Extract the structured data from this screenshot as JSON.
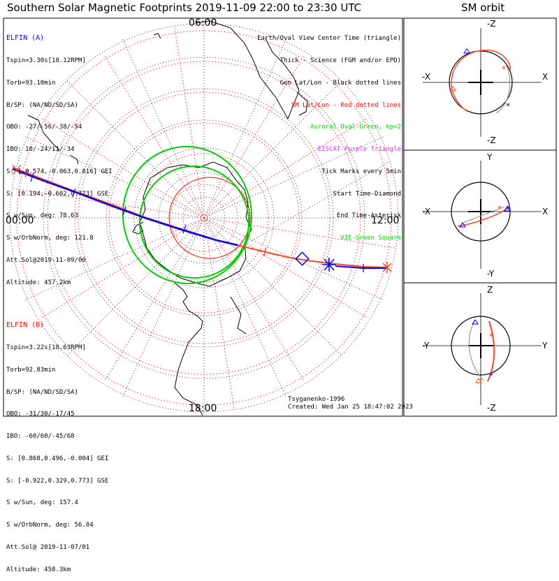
{
  "header": {
    "title": "Southern Solar Magnetic Footprints 2019-11-09 22:00 to 23:30 UTC",
    "orbit_title": "SM orbit"
  },
  "map_labels": {
    "top": "06:00",
    "left": "00:00",
    "right": "12:00",
    "bottom": "18:00"
  },
  "legend": [
    {
      "text": "Earth/Oval View Center Time (triangle)",
      "color": "#000000"
    },
    {
      "text": "Thick - Science (FGM and/or EPD)",
      "color": "#000000"
    },
    {
      "text": "Geo Lat/Lon - Black dotted lines",
      "color": "#000000"
    },
    {
      "text": "SM Lat/Lon - Red dotted lines",
      "color": "#ff0000"
    },
    {
      "text": "Auroral Oval-Green, kp=2",
      "color": "#00cc00"
    },
    {
      "text": "EISCAT-Purple Triangle",
      "color": "#cc33cc"
    },
    {
      "text": "Tick Marks every 5min",
      "color": "#000000"
    },
    {
      "text": "Start Time-Diamond",
      "color": "#000000"
    },
    {
      "text": "End Time-Asterisk",
      "color": "#000000"
    },
    {
      "text": "VIE-Green Square",
      "color": "#00cc00"
    }
  ],
  "elfin_a": {
    "name": "ELFIN (A)",
    "color": "#0000ff",
    "lines": [
      "Tspin=3.30s[18.12RPM]",
      "Torb=93.10min",
      "B/SP: (NA/ND/SD/SA)",
      "OBO: -27/-56/-38/-54",
      "IBO: 10/-24/11/-34",
      "S: [-0.574,-0.063,0.816] GEI",
      "S: [0.194,-0.602,0.773] GSE",
      "S w/Sun, deg: 78.63",
      "S w/OrbNorm, deg: 121.8",
      "Att.Sol@2019-11-09/00",
      "Altitude: 457.2km"
    ]
  },
  "elfin_b": {
    "name": "ELFIN (B)",
    "color": "#ff0000",
    "lines": [
      "Tspin=3.22s[18.63RPM]",
      "Torb=92.83min",
      "B/SP: (NA/ND/SD/SA)",
      "OBO: -31/30/-17/45",
      "IBO: -60/60/-45/68",
      "S: [0.868,0.496,-0.004] GEI",
      "S: [-0.922,0.329,0.773] GSE",
      "S w/Sun, deg: 157.4",
      "S w/OrbNorm, deg: 56.84",
      "Att.Sol@ 2019-11-07/01",
      "Altitude: 458.3km"
    ]
  },
  "footer": {
    "model": "Tsyganenko-1996",
    "created": "Created: Wed Jan 25 18:47:02 2023"
  },
  "orbit_panels": [
    {
      "top": "-Z",
      "bottom": "-Z",
      "left": "-X",
      "right": "X"
    },
    {
      "top": "Y",
      "bottom": "-Y",
      "left": "-X",
      "right": "X"
    },
    {
      "top": "Z",
      "bottom": "-Z",
      "left": "-Y",
      "right": "Y"
    }
  ],
  "colors": {
    "elfin_a_track": "#0000ff",
    "elfin_b_track": "#ff4422",
    "auroral_oval": "#00cc00",
    "sm_grid": "#ff0000",
    "geo_grid": "#000000"
  }
}
